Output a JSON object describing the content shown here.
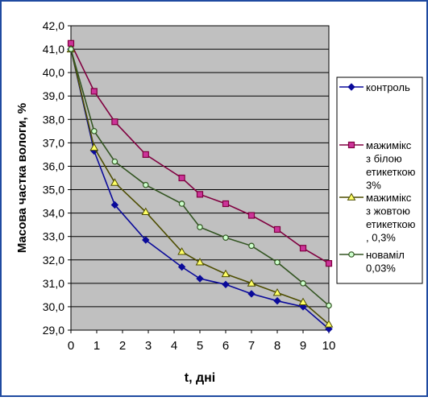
{
  "chart_data": {
    "type": "line",
    "xlabel": "t, дні",
    "ylabel": "Масова частка вологи, %",
    "xlim": [
      0,
      10
    ],
    "ylim": [
      29.0,
      42.0
    ],
    "x_ticks": [
      "0",
      "1",
      "2",
      "3",
      "4",
      "5",
      "6",
      "7",
      "8",
      "9",
      "10"
    ],
    "y_ticks": [
      "29,0",
      "30,0",
      "31,0",
      "32,0",
      "33,0",
      "34,0",
      "35,0",
      "36,0",
      "37,0",
      "38,0",
      "39,0",
      "40,0",
      "41,0",
      "42,0"
    ],
    "grid": "horizontal",
    "legend_position": "right",
    "colors": {
      "plot_bg": "#c0c0c0",
      "grid": "#000000",
      "border_outer": "#1f4aa0",
      "axis_text": "#000000"
    },
    "series": [
      {
        "name": "контроль",
        "color": "#0a0a9a",
        "marker": "diamond",
        "marker_fill": "#0a0a9a",
        "x": [
          0,
          0.9,
          1.7,
          2.9,
          4.3,
          5.0,
          6.0,
          7.0,
          8.0,
          9.0,
          10.0
        ],
        "y": [
          41.0,
          36.65,
          34.35,
          32.85,
          31.7,
          31.2,
          30.95,
          30.55,
          30.25,
          30.0,
          29.05
        ]
      },
      {
        "name": "мажимікс з білою етикеткою 3%",
        "color": "#800040",
        "marker": "square",
        "marker_fill": "#cc3399",
        "x": [
          0,
          0.9,
          1.7,
          2.9,
          4.3,
          5.0,
          6.0,
          7.0,
          8.0,
          9.0,
          10.0
        ],
        "y": [
          41.25,
          39.2,
          37.9,
          36.5,
          35.5,
          34.8,
          34.4,
          33.9,
          33.3,
          32.5,
          31.85
        ]
      },
      {
        "name": "мажимікс з жовтою етикеткою , 0,3%",
        "color": "#4d4d00",
        "marker": "triangle",
        "marker_fill": "#ffff66",
        "x": [
          0,
          0.9,
          1.7,
          2.9,
          4.3,
          5.0,
          6.0,
          7.0,
          8.0,
          9.0,
          10.0
        ],
        "y": [
          41.0,
          36.8,
          35.3,
          34.05,
          32.35,
          31.9,
          31.4,
          31.0,
          30.6,
          30.2,
          29.25
        ]
      },
      {
        "name": "новамiл 0,03%",
        "color": "#335522",
        "marker": "circle",
        "marker_fill": "#ccffcc",
        "x": [
          0,
          0.9,
          1.7,
          2.9,
          4.3,
          5.0,
          6.0,
          7.0,
          8.0,
          9.0,
          10.0
        ],
        "y": [
          41.0,
          37.5,
          36.2,
          35.2,
          34.4,
          33.4,
          32.95,
          32.6,
          31.9,
          31.0,
          30.05
        ]
      }
    ],
    "legend_lines": [
      [
        "контроль"
      ],
      [
        "мажимікс",
        "з білою",
        "етикеткою",
        "3%"
      ],
      [
        "мажимікс",
        "з жовтою",
        "етикеткою",
        ", 0,3%"
      ],
      [
        "новамiл",
        "0,03%"
      ]
    ]
  }
}
